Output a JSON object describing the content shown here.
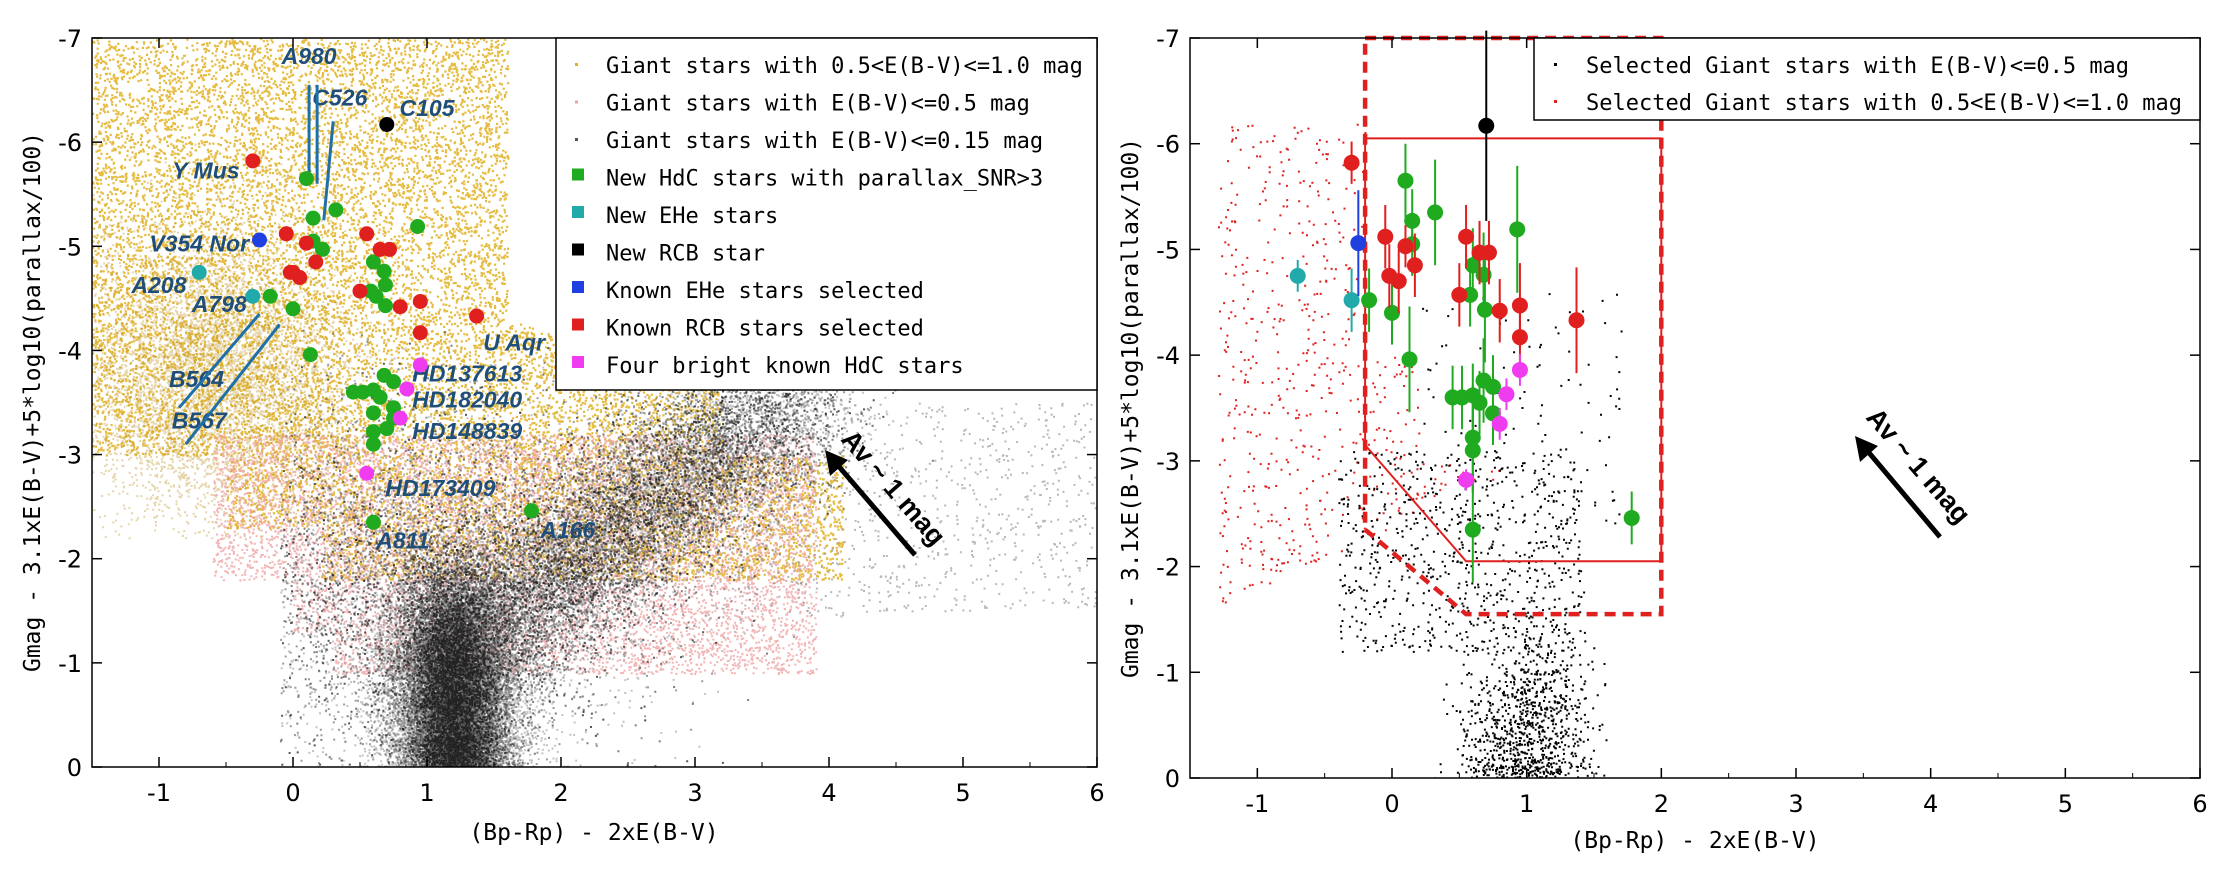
{
  "colors": {
    "gold": "#e0b020",
    "pink": "#efa3a3",
    "dark": "#2b2b2b",
    "green": "#1faa1f",
    "cyan": "#22aaaa",
    "black": "#000000",
    "blue": "#1f3fe0",
    "red": "#e01f1f",
    "magenta": "#f03cf0",
    "label_blue": "#1f4e79",
    "box_red": "#e01f1f"
  },
  "chart_data": [
    {
      "type": "scatter",
      "panel": "left",
      "xlabel": "(Bp-Rp) - 2xE(B-V)",
      "ylabel": "Gmag - 3.1xE(B-V)+5*log10(parallax/100)",
      "xlim": [
        -1.5,
        6
      ],
      "ylim": [
        0,
        -7
      ],
      "xticks": [
        "-1",
        "0",
        "1",
        "2",
        "3",
        "4",
        "5",
        "6"
      ],
      "yticks": [
        "-7",
        "-6",
        "-5",
        "-4",
        "-3",
        "-2",
        "-1",
        "0"
      ],
      "legend_position": "top-right",
      "legend": [
        {
          "label": "Giant stars with 0.5<E(B-V)<=1.0 mag",
          "color": "#e0b020",
          "marker": "dot"
        },
        {
          "label": "Giant stars with E(B-V)<=0.5 mag",
          "color": "#efa3a3",
          "marker": "dot"
        },
        {
          "label": "Giant stars with E(B-V)<=0.15 mag",
          "color": "#555555",
          "marker": "dot"
        },
        {
          "label": "New HdC stars with parallax_SNR>3",
          "color": "#1faa1f",
          "marker": "square"
        },
        {
          "label": "New EHe stars",
          "color": "#22aaaa",
          "marker": "square"
        },
        {
          "label": "New RCB star",
          "color": "#000000",
          "marker": "square"
        },
        {
          "label": "Known EHe stars selected",
          "color": "#1f3fe0",
          "marker": "square"
        },
        {
          "label": "Known RCB stars selected",
          "color": "#e01f1f",
          "marker": "square"
        },
        {
          "label": "Four bright known HdC stars",
          "color": "#f03cf0",
          "marker": "square"
        }
      ],
      "series": [
        {
          "name": "New HdC stars with parallax_SNR>3",
          "color": "#1faa1f",
          "points": [
            [
              0.1,
              -5.65
            ],
            [
              0.15,
              -5.27
            ],
            [
              0.32,
              -5.35
            ],
            [
              0.93,
              -5.19
            ],
            [
              0.15,
              -5.05
            ],
            [
              0.22,
              -4.97
            ],
            [
              0.6,
              -4.85
            ],
            [
              0.68,
              -4.76
            ],
            [
              0.69,
              -4.63
            ],
            [
              0.58,
              -4.57
            ],
            [
              0.62,
              -4.52
            ],
            [
              0.69,
              -4.43
            ],
            [
              -0.17,
              -4.52
            ],
            [
              0.0,
              -4.4
            ],
            [
              0.13,
              -3.96
            ],
            [
              0.45,
              -3.6
            ],
            [
              0.52,
              -3.6
            ],
            [
              0.6,
              -3.62
            ],
            [
              0.68,
              -3.76
            ],
            [
              0.75,
              -3.7
            ],
            [
              0.65,
              -3.55
            ],
            [
              0.75,
              -3.45
            ],
            [
              0.6,
              -3.4
            ],
            [
              0.75,
              -3.35
            ],
            [
              0.6,
              -3.22
            ],
            [
              0.7,
              -3.25
            ],
            [
              0.6,
              -3.1
            ],
            [
              0.6,
              -2.35
            ],
            [
              1.78,
              -2.46
            ]
          ]
        },
        {
          "name": "New EHe stars",
          "color": "#22aaaa",
          "points": [
            [
              -0.7,
              -4.75
            ],
            [
              -0.3,
              -4.52
            ]
          ]
        },
        {
          "name": "New RCB star",
          "color": "#000000",
          "points": [
            [
              0.7,
              -6.17
            ]
          ]
        },
        {
          "name": "Known EHe stars selected",
          "color": "#1f3fe0",
          "points": [
            [
              -0.25,
              -5.06
            ]
          ]
        },
        {
          "name": "Known RCB stars selected",
          "color": "#e01f1f",
          "points": [
            [
              -0.3,
              -5.82
            ],
            [
              -0.05,
              -5.12
            ],
            [
              0.1,
              -5.03
            ],
            [
              0.55,
              -5.12
            ],
            [
              0.65,
              -4.97
            ],
            [
              0.72,
              -4.97
            ],
            [
              -0.02,
              -4.75
            ],
            [
              0.05,
              -4.7
            ],
            [
              0.0,
              -4.75
            ],
            [
              0.17,
              -4.85
            ],
            [
              0.5,
              -4.57
            ],
            [
              0.8,
              -4.42
            ],
            [
              0.95,
              -4.47
            ],
            [
              1.37,
              -4.33
            ],
            [
              0.95,
              -4.17
            ]
          ]
        },
        {
          "name": "Four bright known HdC stars",
          "color": "#f03cf0",
          "points": [
            [
              0.95,
              -3.86
            ],
            [
              0.85,
              -3.63
            ],
            [
              0.8,
              -3.35
            ],
            [
              0.55,
              -2.82
            ]
          ]
        }
      ],
      "annotations": [
        {
          "text": "A980",
          "x": 0.12,
          "y": -6.75
        },
        {
          "text": "C526",
          "x": 0.35,
          "y": -6.35
        },
        {
          "text": "C105",
          "x": 1.0,
          "y": -6.25
        },
        {
          "text": "Y Mus",
          "x": -0.65,
          "y": -5.65
        },
        {
          "text": "V354 Nor",
          "x": -0.7,
          "y": -4.95
        },
        {
          "text": "A208",
          "x": -1.0,
          "y": -4.55
        },
        {
          "text": "A798",
          "x": -0.55,
          "y": -4.37
        },
        {
          "text": "U Aqr",
          "x": 1.65,
          "y": -4.0
        },
        {
          "text": "B564",
          "x": -0.72,
          "y": -3.65
        },
        {
          "text": "B567",
          "x": -0.7,
          "y": -3.25
        },
        {
          "text": "HD137613",
          "x": 1.3,
          "y": -3.7
        },
        {
          "text": "HD182040",
          "x": 1.3,
          "y": -3.45
        },
        {
          "text": "HD148839",
          "x": 1.3,
          "y": -3.15
        },
        {
          "text": "HD173409",
          "x": 1.1,
          "y": -2.6
        },
        {
          "text": "A811",
          "x": 0.82,
          "y": -2.1
        },
        {
          "text": "A166",
          "x": 2.05,
          "y": -2.2
        }
      ],
      "arrow_label": "Av ~ 1 mag"
    },
    {
      "type": "scatter",
      "panel": "right",
      "xlabel": "(Bp-Rp) - 2xE(B-V)",
      "ylabel": "Gmag - 3.1xE(B-V)+5*log10(parallax/100)",
      "xlim": [
        -1.5,
        6
      ],
      "ylim": [
        0,
        -7
      ],
      "xticks": [
        "-1",
        "0",
        "1",
        "2",
        "3",
        "4",
        "5",
        "6"
      ],
      "yticks": [
        "-7",
        "-6",
        "-5",
        "-4",
        "-3",
        "-2",
        "-1",
        "0"
      ],
      "legend_position": "top-right",
      "legend": [
        {
          "label": "Selected Giant stars with E(B-V)<=0.5 mag",
          "color": "#000000",
          "marker": "dot"
        },
        {
          "label": "Selected Giant stars with 0.5<E(B-V)<=1.0 mag",
          "color": "#e01f1f",
          "marker": "dot"
        }
      ],
      "series": [
        {
          "name": "New HdC stars with parallax_SNR>3",
          "color": "#1faa1f",
          "points": [
            [
              0.1,
              -5.65
            ],
            [
              0.15,
              -5.27
            ],
            [
              0.32,
              -5.35
            ],
            [
              0.93,
              -5.19
            ],
            [
              0.15,
              -5.05
            ],
            [
              0.6,
              -4.85
            ],
            [
              0.68,
              -4.76
            ],
            [
              0.58,
              -4.57
            ],
            [
              0.69,
              -4.43
            ],
            [
              -0.17,
              -4.52
            ],
            [
              0.0,
              -4.4
            ],
            [
              0.13,
              -3.96
            ],
            [
              0.45,
              -3.6
            ],
            [
              0.52,
              -3.6
            ],
            [
              0.6,
              -3.62
            ],
            [
              0.68,
              -3.76
            ],
            [
              0.75,
              -3.7
            ],
            [
              0.65,
              -3.55
            ],
            [
              0.75,
              -3.45
            ],
            [
              0.6,
              -3.22
            ],
            [
              0.6,
              -3.1
            ],
            [
              0.6,
              -2.35
            ],
            [
              1.78,
              -2.46
            ]
          ],
          "errorbars": [
            0.35,
            0.3,
            0.5,
            0.6,
            0.3,
            0.35,
            0.4,
            0.3,
            0.5,
            0.3,
            0.3,
            0.5,
            0.3,
            0.3,
            0.3,
            0.4,
            0.3,
            0.3,
            0.3,
            0.5,
            0.4,
            0.5,
            0.25
          ]
        },
        {
          "name": "New EHe stars",
          "color": "#22aaaa",
          "points": [
            [
              -0.7,
              -4.75
            ],
            [
              -0.3,
              -4.52
            ]
          ],
          "errorbars": [
            0.15,
            0.3
          ]
        },
        {
          "name": "New RCB star",
          "color": "#000000",
          "points": [
            [
              0.7,
              -6.17
            ]
          ],
          "errorbars": [
            0.9
          ]
        },
        {
          "name": "Known EHe stars selected",
          "color": "#1f3fe0",
          "points": [
            [
              -0.25,
              -5.06
            ]
          ],
          "errorbars": [
            0.5
          ]
        },
        {
          "name": "Known RCB stars selected",
          "color": "#e01f1f",
          "points": [
            [
              -0.3,
              -5.82
            ],
            [
              -0.05,
              -5.12
            ],
            [
              0.1,
              -5.03
            ],
            [
              0.55,
              -5.12
            ],
            [
              0.65,
              -4.97
            ],
            [
              0.72,
              -4.97
            ],
            [
              -0.02,
              -4.75
            ],
            [
              0.05,
              -4.7
            ],
            [
              0.17,
              -4.85
            ],
            [
              0.5,
              -4.57
            ],
            [
              0.8,
              -4.42
            ],
            [
              0.95,
              -4.47
            ],
            [
              1.37,
              -4.33
            ],
            [
              0.95,
              -4.17
            ]
          ],
          "errorbars": [
            0.2,
            0.3,
            0.2,
            0.3,
            0.3,
            0.3,
            0.3,
            0.3,
            0.3,
            0.3,
            0.3,
            0.4,
            0.5,
            0.3
          ]
        },
        {
          "name": "Four bright known HdC stars",
          "color": "#f03cf0",
          "points": [
            [
              0.95,
              -3.86
            ],
            [
              0.85,
              -3.63
            ],
            [
              0.8,
              -3.35
            ],
            [
              0.55,
              -2.82
            ]
          ],
          "errorbars": [
            0.15,
            0.15,
            0.15,
            0.1
          ]
        }
      ],
      "selection_box_solid": [
        [
          -0.2,
          -6.05
        ],
        [
          2.0,
          -6.05
        ],
        [
          2.0,
          -2.05
        ],
        [
          0.55,
          -2.05
        ],
        [
          -0.2,
          -3.15
        ]
      ],
      "selection_box_dashed": [
        [
          -0.2,
          -7.0
        ],
        [
          2.0,
          -7.0
        ],
        [
          2.0,
          -1.55
        ],
        [
          0.55,
          -1.55
        ],
        [
          -0.2,
          -2.35
        ]
      ],
      "arrow_label": "Av ~ 1 mag"
    }
  ]
}
